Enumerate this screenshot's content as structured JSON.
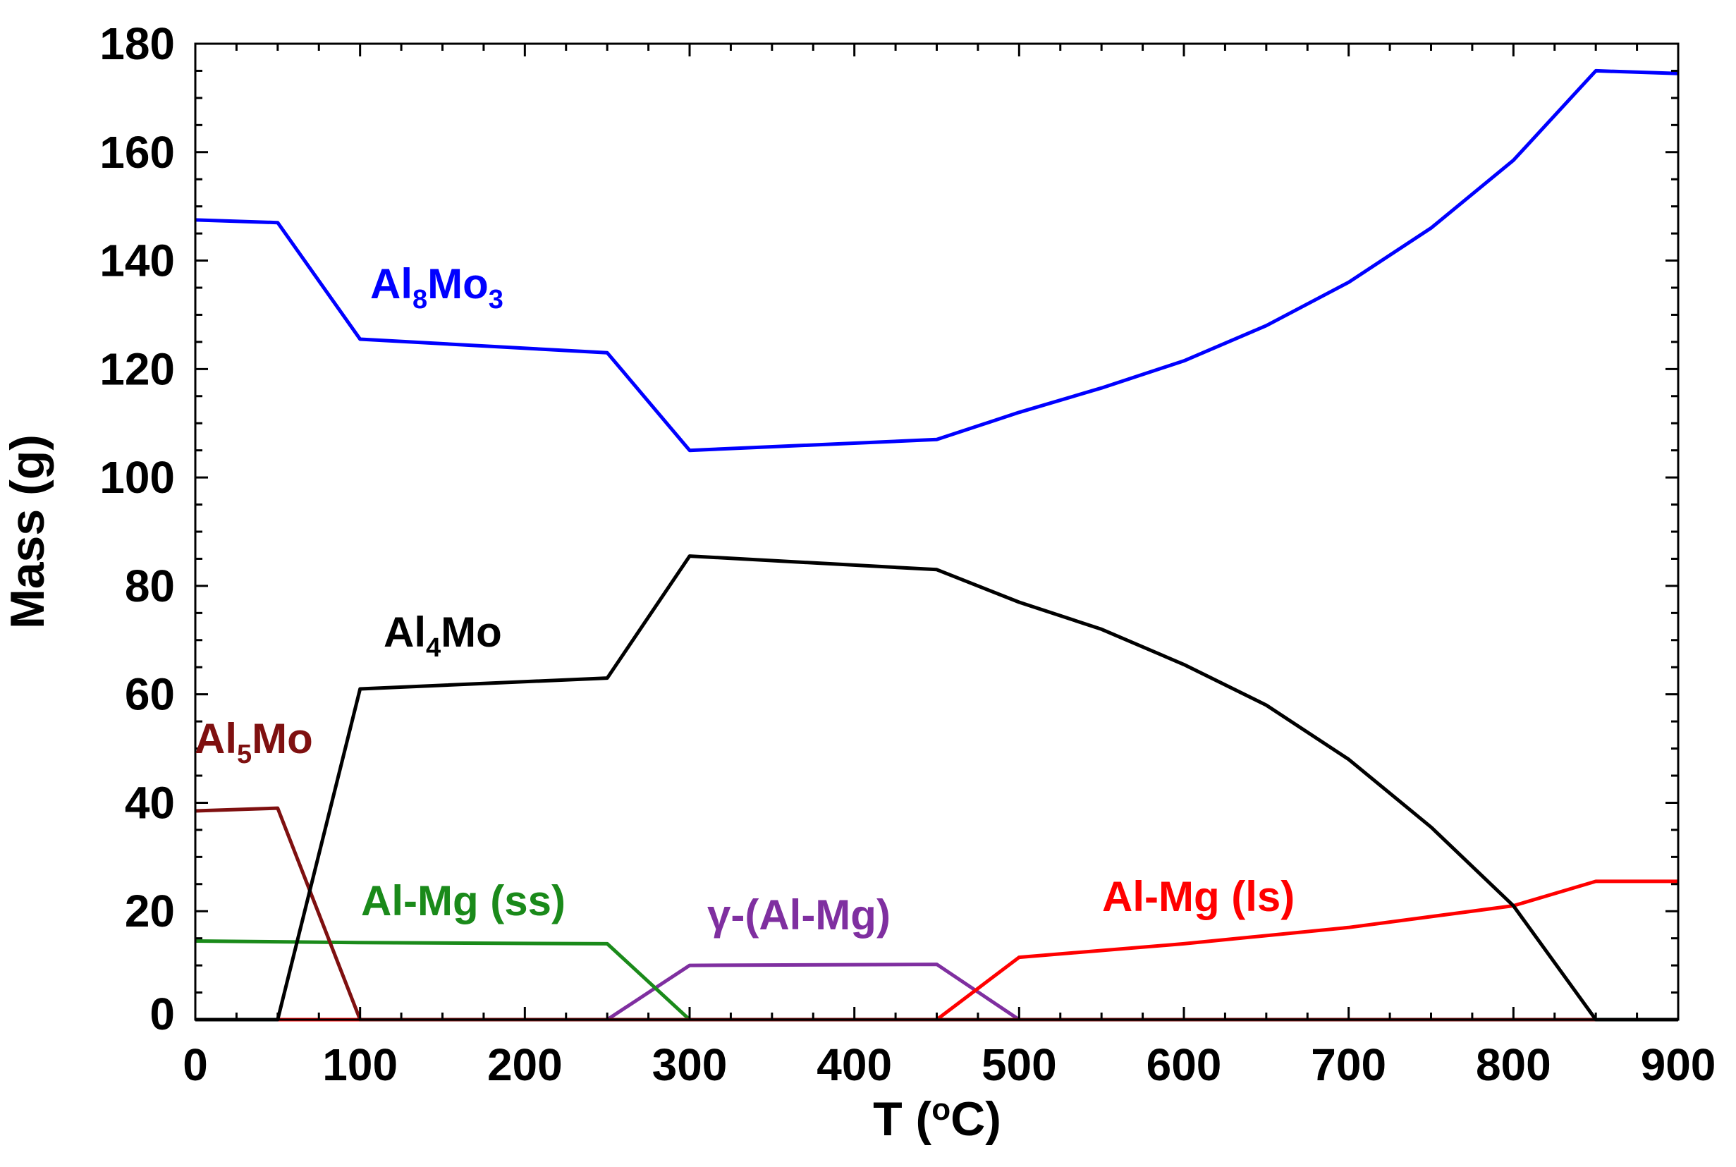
{
  "chart_data": {
    "type": "line",
    "title": "",
    "xlabel": "T (°C)",
    "xlabel_parts": [
      "T (",
      "o",
      "C)"
    ],
    "ylabel": "Mass (g)",
    "xlim": [
      0,
      900
    ],
    "ylim": [
      0,
      180
    ],
    "xticks": [
      0,
      100,
      200,
      300,
      400,
      500,
      600,
      700,
      800,
      900
    ],
    "yticks": [
      0,
      20,
      40,
      60,
      80,
      100,
      120,
      140,
      160,
      180
    ],
    "grid": false,
    "series": [
      {
        "name": "Al8Mo3",
        "label_parts": [
          "Al",
          "8",
          "Mo",
          "3"
        ],
        "color": "#0000ff",
        "x": [
          0,
          50,
          100,
          250,
          300,
          450,
          500,
          550,
          600,
          650,
          700,
          750,
          800,
          850,
          900
        ],
        "y": [
          147.5,
          147,
          125.5,
          123,
          105,
          107,
          112,
          116.5,
          121.5,
          128,
          136,
          146,
          158.5,
          175,
          174.5
        ]
      },
      {
        "name": "Al4Mo",
        "label_parts": [
          "Al",
          "4",
          "Mo"
        ],
        "color": "#000000",
        "x": [
          0,
          50,
          100,
          250,
          300,
          450,
          500,
          550,
          600,
          650,
          700,
          750,
          800,
          850,
          900
        ],
        "y": [
          0,
          0,
          61,
          63,
          85.5,
          83,
          77,
          72,
          65.5,
          58,
          48,
          35.5,
          21,
          0,
          0
        ]
      },
      {
        "name": "Al5Mo",
        "label_parts": [
          "Al",
          "5",
          "Mo"
        ],
        "color": "#7f1010",
        "x": [
          0,
          50,
          100,
          900
        ],
        "y": [
          38.5,
          39,
          0,
          0
        ]
      },
      {
        "name": "Al-Mg (ss)",
        "label_parts": [
          "Al-Mg (ss)"
        ],
        "color": "#1a8a1a",
        "x": [
          0,
          100,
          250,
          300,
          900
        ],
        "y": [
          14.5,
          14.2,
          14,
          0,
          0
        ]
      },
      {
        "name": "γ-(Al-Mg)",
        "label_parts": [
          "γ-(Al-Mg)"
        ],
        "color": "#7f2fa0",
        "x": [
          0,
          250,
          300,
          450,
          500,
          900
        ],
        "y": [
          0,
          0,
          10,
          10.2,
          0,
          0
        ]
      },
      {
        "name": "Al-Mg (ls)",
        "label_parts": [
          "Al-Mg (ls)"
        ],
        "color": "#ff0000",
        "x": [
          0,
          450,
          500,
          600,
          700,
          800,
          850,
          900
        ],
        "y": [
          0,
          0,
          11.5,
          14,
          17,
          21,
          25.5,
          25.5
        ]
      }
    ]
  }
}
